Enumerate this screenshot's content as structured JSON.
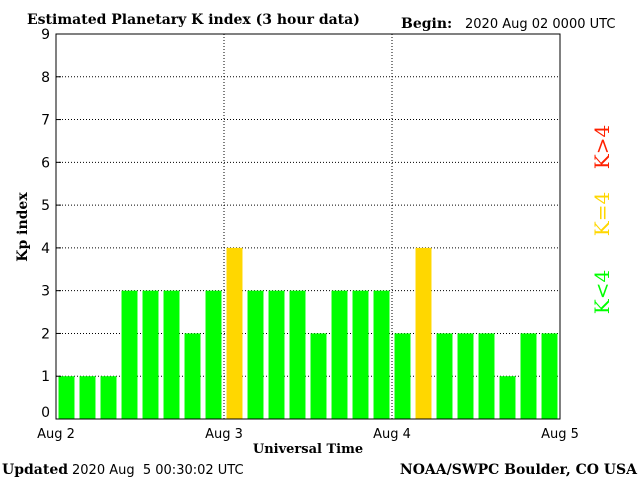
{
  "header": {
    "title": "Estimated Planetary K index (3 hour data)",
    "begin_label": "Begin:",
    "begin_value": "2020 Aug 02 0000 UTC"
  },
  "footer": {
    "updated_label": "Updated",
    "updated_value": "2020 Aug  5 00:30:02 UTC",
    "source": "NOAA/SWPC Boulder, CO USA"
  },
  "legend": {
    "low": "K<4",
    "mid": "K=4",
    "high": "K>4"
  },
  "colors": {
    "low": "#00ff00",
    "mid": "#ffd700",
    "high": "#ff2000",
    "axis": "#000000",
    "grid": "#000000"
  },
  "chart_data": {
    "type": "bar",
    "title": "Estimated Planetary K index (3 hour data)",
    "xlabel": "Universal Time",
    "ylabel": "Kp index",
    "ylim": [
      0,
      9
    ],
    "yticks": [
      "0",
      "1",
      "2",
      "3",
      "4",
      "5",
      "6",
      "7",
      "8",
      "9"
    ],
    "xtick_labels": [
      "Aug 2",
      "Aug 3",
      "Aug 4",
      "Aug 5"
    ],
    "grid": true,
    "legend_position": "right",
    "values": [
      1,
      1,
      1,
      3,
      3,
      3,
      2,
      3,
      4,
      3,
      3,
      3,
      2,
      3,
      3,
      3,
      2,
      4,
      2,
      2,
      2,
      1,
      2,
      2
    ]
  }
}
